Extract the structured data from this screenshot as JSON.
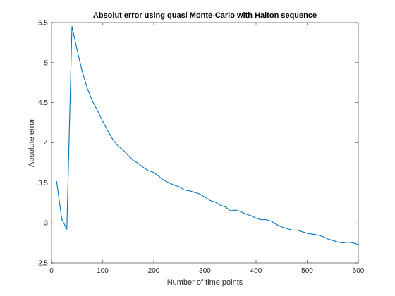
{
  "chart_data": {
    "type": "line",
    "title": "Absolut error using quasi Monte-Carlo with Halton sequence",
    "xlabel": "Number of time points",
    "ylabel": "Absolute error",
    "xlim": [
      0,
      600
    ],
    "ylim": [
      2.5,
      5.5
    ],
    "xticks": [
      0,
      100,
      200,
      300,
      400,
      500,
      600
    ],
    "yticks": [
      2.5,
      3,
      3.5,
      4,
      4.5,
      5,
      5.5
    ],
    "xtick_labels": [
      "0",
      "100",
      "200",
      "300",
      "400",
      "500",
      "600"
    ],
    "ytick_labels": [
      "2.5",
      "3",
      "3.5",
      "4",
      "4.5",
      "5",
      "5.5"
    ],
    "grid": false,
    "series_color": "#0072BD",
    "series": [
      {
        "x": [
          10,
          20,
          30,
          40,
          50,
          60,
          70,
          80,
          90,
          100,
          110,
          120,
          130,
          140,
          150,
          160,
          170,
          180,
          190,
          200,
          210,
          220,
          230,
          240,
          250,
          260,
          270,
          280,
          290,
          300,
          310,
          320,
          330,
          340,
          350,
          360,
          370,
          380,
          390,
          400,
          410,
          420,
          430,
          440,
          450,
          460,
          470,
          480,
          490,
          500,
          510,
          520,
          530,
          540,
          550,
          560,
          570,
          580,
          590,
          600
        ],
        "y": [
          3.52,
          3.05,
          2.92,
          5.45,
          5.16,
          4.89,
          4.68,
          4.52,
          4.4,
          4.27,
          4.15,
          4.04,
          3.96,
          3.91,
          3.84,
          3.78,
          3.74,
          3.69,
          3.65,
          3.63,
          3.58,
          3.53,
          3.5,
          3.47,
          3.45,
          3.41,
          3.4,
          3.38,
          3.36,
          3.32,
          3.28,
          3.26,
          3.22,
          3.2,
          3.15,
          3.16,
          3.14,
          3.11,
          3.09,
          3.06,
          3.04,
          3.04,
          3.02,
          2.98,
          2.95,
          2.93,
          2.91,
          2.91,
          2.89,
          2.87,
          2.86,
          2.85,
          2.83,
          2.8,
          2.78,
          2.76,
          2.75,
          2.76,
          2.75,
          2.73
        ]
      }
    ]
  }
}
